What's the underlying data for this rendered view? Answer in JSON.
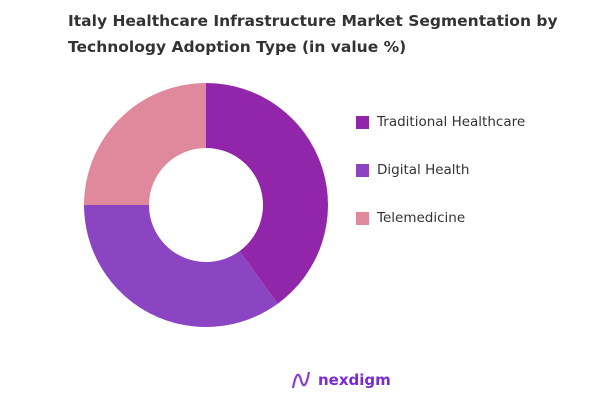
{
  "chart_data": {
    "type": "pie",
    "donut": true,
    "title": "Italy Healthcare Infrastructure Market Segmentation by Technology Adoption Type (in value %)",
    "categories": [
      "Traditional Healthcare",
      "Digital Health",
      "Telemedicine"
    ],
    "values": [
      40,
      35,
      25
    ],
    "colors": [
      "#9226aa",
      "#8b45c3",
      "#e0899c"
    ],
    "legend_position": "right"
  },
  "brand": {
    "logo_text": "nexdigm"
  }
}
